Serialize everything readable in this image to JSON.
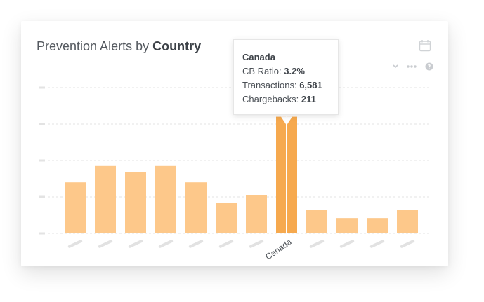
{
  "header": {
    "title_prefix": "Prevention Alerts by",
    "title_emphasis": "Country",
    "icons": [
      "calendar-icon",
      "chevron-down-icon",
      "more-dots-icon",
      "help-icon"
    ]
  },
  "tooltip": {
    "country": "Canada",
    "rows": [
      {
        "label": "CB Ratio:",
        "value": "3.2%"
      },
      {
        "label": "Transactions:",
        "value": "6,581"
      },
      {
        "label": "Chargebacks:",
        "value": "211"
      }
    ]
  },
  "colors": {
    "bar": "#fdc88a",
    "bar_active": "#f6a94e",
    "grid": "#e3e3e3",
    "placeholder_label": "#e2e2e2",
    "axis_label": "#4f5459",
    "icon": "#c9ccd0"
  },
  "chart_data": {
    "type": "bar",
    "title": "",
    "categories": [
      "",
      "",
      "",
      "",
      "",
      "",
      "",
      "Canada",
      "",
      "",
      "",
      ""
    ],
    "values": [
      1.4,
      1.85,
      1.68,
      1.85,
      1.4,
      0.83,
      1.04,
      3.2,
      0.65,
      0.42,
      0.42,
      0.65
    ],
    "highlighted_index": 7,
    "ylim": [
      0,
      4
    ],
    "gridlines": 4,
    "ytick_labels": [],
    "grid": true,
    "legend": "none"
  }
}
